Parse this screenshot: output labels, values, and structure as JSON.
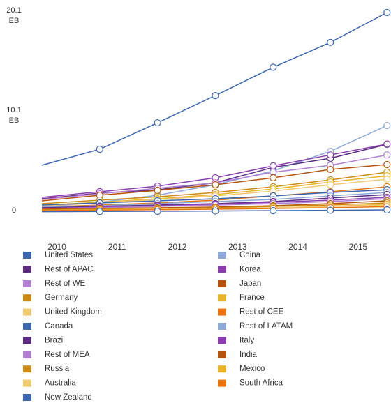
{
  "chart_data": {
    "type": "line",
    "x": [
      2009.75,
      2010.71,
      2011.67,
      2012.63,
      2013.59,
      2014.54,
      2015.48
    ],
    "xlim": [
      2009.75,
      2015.5
    ],
    "xticks": [
      2010,
      2011,
      2012,
      2013,
      2014,
      2015
    ],
    "ylim": [
      0,
      20.1
    ],
    "yticks": [
      0,
      {
        "value": 10.1,
        "label": "10.1 EB"
      },
      {
        "value": 20.1,
        "label": "20.1 EB"
      }
    ],
    "series": [
      {
        "name": "United States",
        "color": "#3d66b0",
        "values": [
          4.76,
          6.37,
          9.03,
          11.76,
          14.6,
          17.1,
          20.1
        ]
      },
      {
        "name": "China",
        "color": "#8ea9d8",
        "values": [
          0.56,
          1.05,
          1.75,
          2.8,
          4.2,
          6.16,
          8.75
        ]
      },
      {
        "name": "Rest of APAC",
        "color": "#5b2c82",
        "values": [
          1.4,
          1.96,
          2.3,
          3.0,
          4.55,
          5.46,
          6.86
        ]
      },
      {
        "name": "Korea",
        "color": "#8b3fae",
        "values": [
          1.54,
          2.1,
          2.66,
          3.5,
          4.7,
          5.8,
          6.9
        ]
      },
      {
        "name": "Rest of WE",
        "color": "#b27fd3",
        "values": [
          1.33,
          1.9,
          2.45,
          3.0,
          4.06,
          4.76,
          5.8
        ]
      },
      {
        "name": "Japan",
        "color": "#b5520c",
        "values": [
          1.19,
          1.75,
          2.24,
          2.8,
          3.5,
          4.34,
          4.83
        ]
      },
      {
        "name": "Germany",
        "color": "#cc8a14",
        "values": [
          0.91,
          1.26,
          1.6,
          2.03,
          2.6,
          3.29,
          4.06
        ]
      },
      {
        "name": "France",
        "color": "#e8b52a",
        "values": [
          0.77,
          1.05,
          1.4,
          1.82,
          2.38,
          3.08,
          3.7
        ]
      },
      {
        "name": "United Kingdom",
        "color": "#f0c870",
        "values": [
          0.7,
          0.98,
          1.33,
          1.68,
          2.17,
          2.8,
          3.36
        ]
      },
      {
        "name": "Rest of CEE",
        "color": "#e8730f",
        "values": [
          0.56,
          0.77,
          0.98,
          1.26,
          1.68,
          2.1,
          2.6
        ]
      },
      {
        "name": "Canada",
        "color": "#3d66b0",
        "values": [
          0.77,
          0.98,
          1.19,
          1.4,
          1.68,
          2.03,
          2.3
        ]
      },
      {
        "name": "Rest of LATAM",
        "color": "#8ea9d8",
        "values": [
          0.56,
          0.7,
          0.91,
          1.12,
          1.33,
          1.68,
          2.03
        ]
      },
      {
        "name": "Brazil",
        "color": "#5b2c82",
        "values": [
          0.49,
          0.63,
          0.77,
          0.91,
          1.12,
          1.47,
          1.82
        ]
      },
      {
        "name": "Italy",
        "color": "#8b3fae",
        "values": [
          0.42,
          0.56,
          0.7,
          0.84,
          1.05,
          1.26,
          1.54
        ]
      },
      {
        "name": "Rest of MEA",
        "color": "#b27fd3",
        "values": [
          0.42,
          0.49,
          0.63,
          0.77,
          0.91,
          1.12,
          1.4
        ]
      },
      {
        "name": "India",
        "color": "#b5520c",
        "values": [
          0.35,
          0.42,
          0.49,
          0.56,
          0.7,
          0.91,
          1.19
        ]
      },
      {
        "name": "Russia",
        "color": "#cc8a14",
        "values": [
          0.28,
          0.35,
          0.42,
          0.49,
          0.63,
          0.77,
          0.98
        ]
      },
      {
        "name": "Mexico",
        "color": "#e8b52a",
        "values": [
          0.21,
          0.28,
          0.35,
          0.42,
          0.49,
          0.63,
          0.84
        ]
      },
      {
        "name": "Australia",
        "color": "#f0c870",
        "values": [
          0.21,
          0.28,
          0.35,
          0.42,
          0.49,
          0.63,
          0.77
        ]
      },
      {
        "name": "South Africa",
        "color": "#e8730f",
        "values": [
          0.21,
          0.25,
          0.3,
          0.35,
          0.42,
          0.5,
          0.6
        ]
      },
      {
        "name": "New Zealand",
        "color": "#3d66b0",
        "values": [
          0.1,
          0.12,
          0.14,
          0.17,
          0.2,
          0.24,
          0.28
        ]
      }
    ]
  }
}
